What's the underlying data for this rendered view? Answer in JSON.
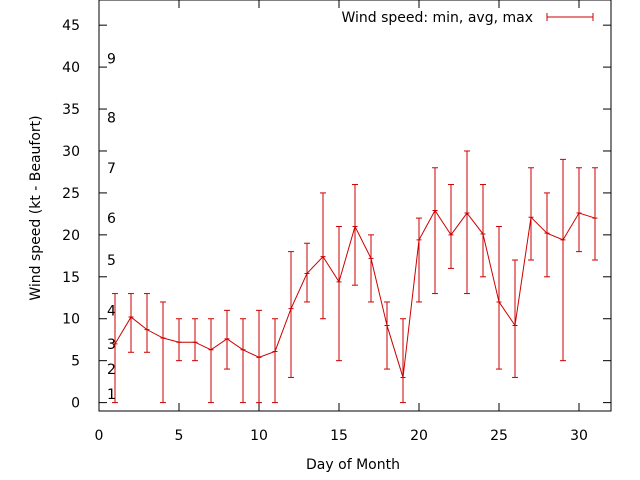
{
  "chart_data": {
    "type": "line",
    "xlabel": "Day of Month",
    "ylabel": "Wind speed (kt - Beaufort)",
    "xlim": [
      0,
      32
    ],
    "ylim": [
      -1,
      48
    ],
    "xticks": [
      0,
      5,
      10,
      15,
      20,
      25,
      30
    ],
    "yticks": [
      0,
      5,
      10,
      15,
      20,
      25,
      30,
      35,
      40,
      45
    ],
    "grid": false,
    "legend_position": "top-right",
    "series": [
      {
        "name": "Wind speed: min, avg, max",
        "color": "#cc0000",
        "x": [
          1,
          2,
          3,
          4,
          5,
          6,
          7,
          8,
          9,
          10,
          11,
          12,
          13,
          14,
          15,
          16,
          17,
          18,
          19,
          20,
          21,
          22,
          23,
          24,
          25,
          26,
          27,
          28,
          29,
          30,
          31
        ],
        "avg": [
          7,
          10.2,
          8.7,
          7.7,
          7.2,
          7.2,
          6.3,
          7.6,
          6.3,
          5.4,
          6.1,
          11.2,
          15.4,
          17.4,
          14.4,
          21,
          17.2,
          9.2,
          3,
          19.4,
          22.9,
          20,
          22.6,
          20.1,
          12,
          9.2,
          22.1,
          20.2,
          19.4,
          22.6,
          22
        ],
        "min": [
          0,
          6,
          6,
          0,
          5,
          5,
          0,
          4,
          0,
          0,
          0,
          3,
          12,
          10,
          5,
          14,
          12,
          4,
          0,
          12,
          13,
          16,
          13,
          15,
          4,
          3,
          17,
          15,
          5,
          18,
          17
        ],
        "max": [
          13,
          13,
          13,
          12,
          10,
          10,
          10,
          11,
          10,
          11,
          10,
          18,
          19,
          25,
          21,
          26,
          20,
          12,
          10,
          22,
          28,
          26,
          30,
          26,
          21,
          17,
          28,
          25,
          29,
          28,
          28
        ]
      }
    ],
    "beaufort_labels": [
      {
        "text": "1",
        "kt": 1
      },
      {
        "text": "2",
        "kt": 4
      },
      {
        "text": "3",
        "kt": 7
      },
      {
        "text": "4",
        "kt": 11
      },
      {
        "text": "5",
        "kt": 17
      },
      {
        "text": "6",
        "kt": 22
      },
      {
        "text": "7",
        "kt": 28
      },
      {
        "text": "8",
        "kt": 34
      },
      {
        "text": "9",
        "kt": 41
      }
    ]
  }
}
